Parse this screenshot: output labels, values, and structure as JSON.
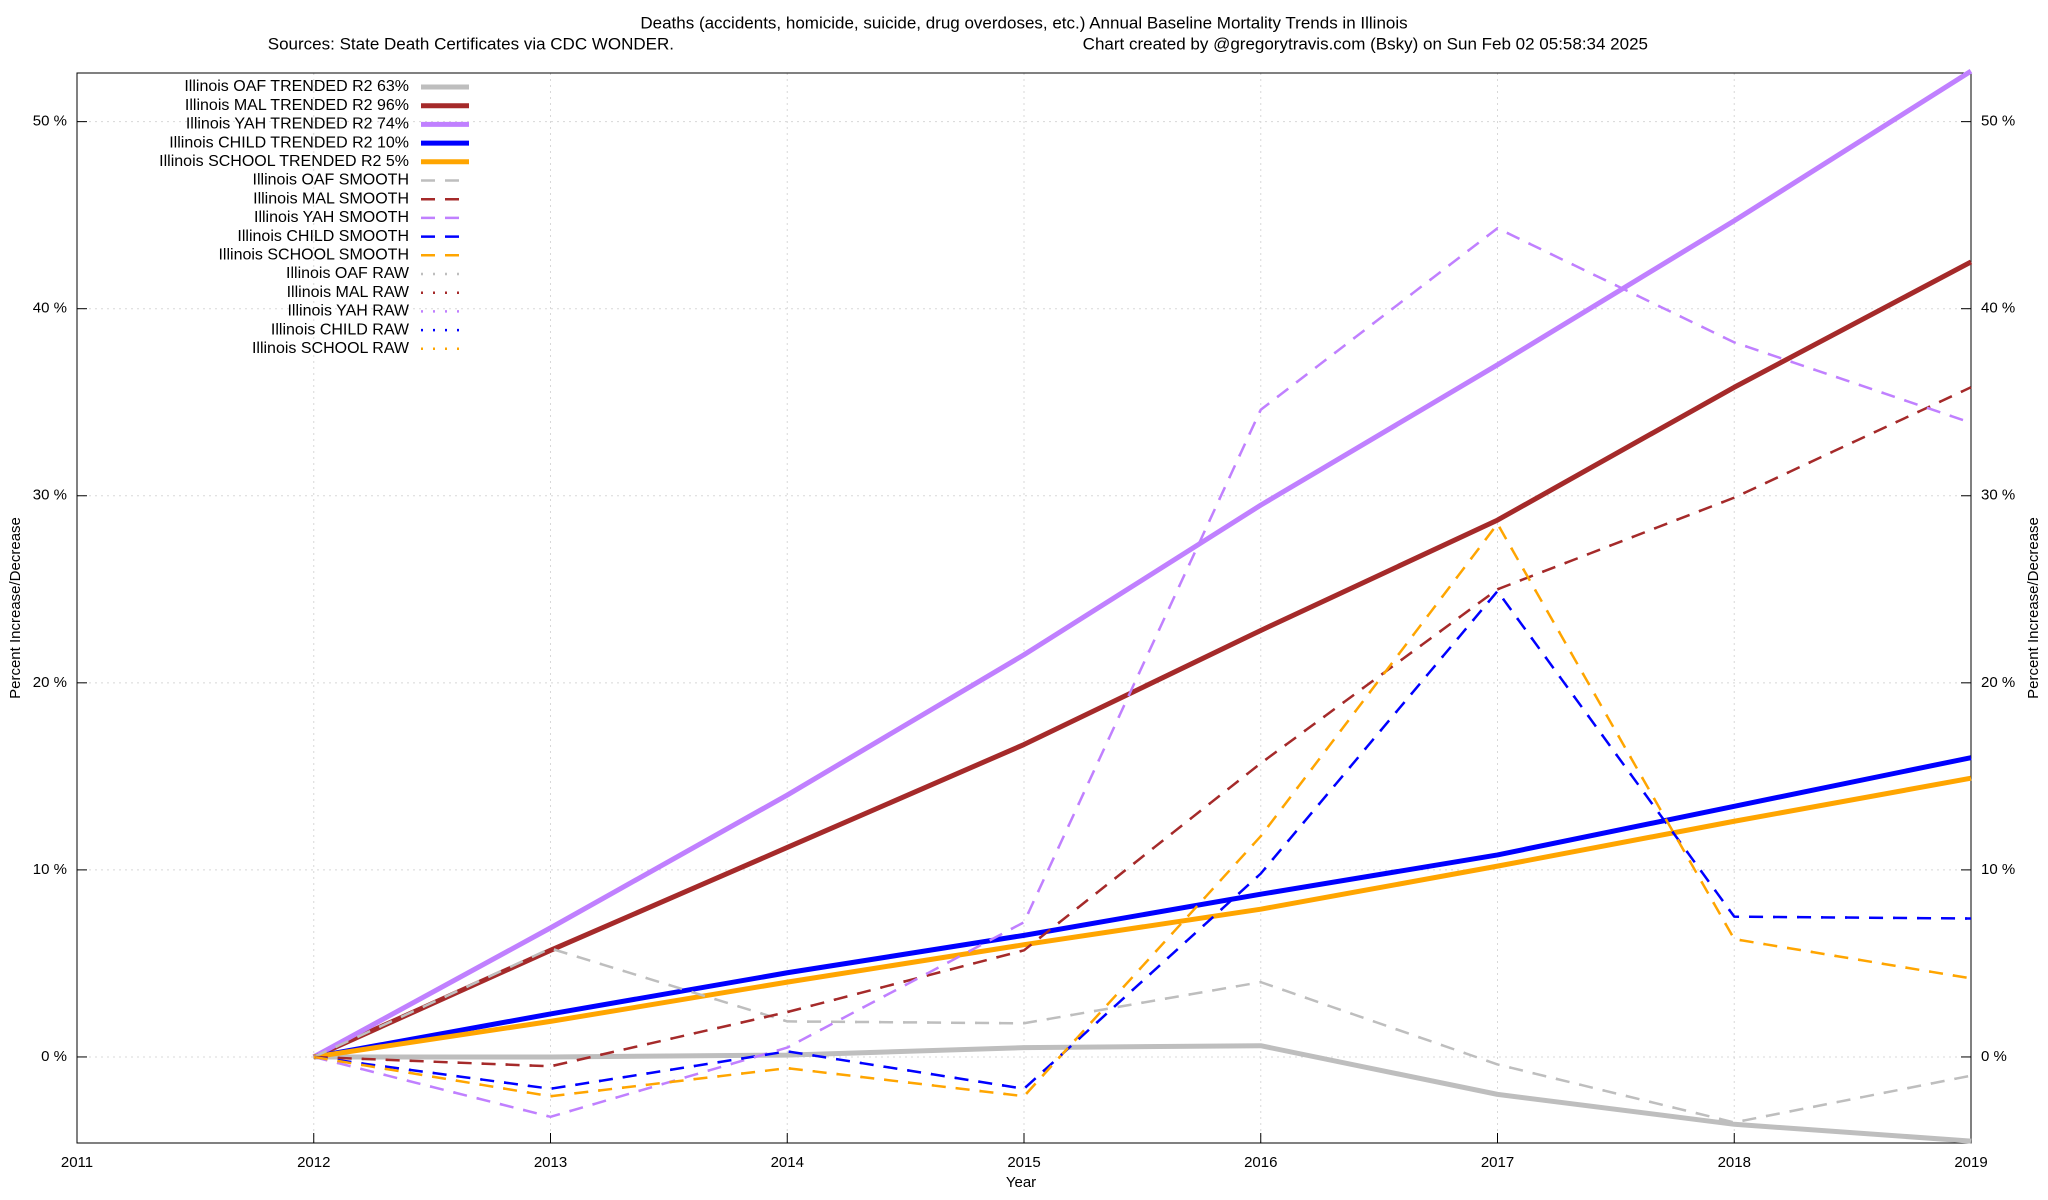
{
  "chart_data": {
    "type": "line",
    "title": "Deaths (accidents, homicide, suicide, drug overdoses, etc.)  Annual Baseline Mortality Trends in Illinois",
    "subtitle": "Sources: State Death Certificates via CDC WONDER.",
    "credit": "Chart created by @gregorytravis.com (Bsky) on Sun Feb 02 05:58:34 2025",
    "x_label": "Year",
    "y_label": "Percent Increase/Decrease",
    "y2_label": "Percent Increase/Decrease",
    "x": [
      2012,
      2013,
      2014,
      2015,
      2016,
      2017,
      2018,
      2019
    ],
    "xlim": [
      2011,
      2019
    ],
    "xticks": [
      2011,
      2012,
      2013,
      2014,
      2015,
      2016,
      2017,
      2018,
      2019
    ],
    "ylim": [
      -4.6,
      52.6
    ],
    "yticks": [
      {
        "value": 0,
        "label": "0 %"
      },
      {
        "value": 10,
        "label": "10 %"
      },
      {
        "value": 20,
        "label": "20 %"
      },
      {
        "value": 30,
        "label": "30 %"
      },
      {
        "value": 40,
        "label": "40 %"
      },
      {
        "value": 50,
        "label": "50 %"
      }
    ],
    "grid": true,
    "legend": "top-left",
    "series": [
      {
        "name": "Illinois OAF TRENDED R2  63%",
        "color": "#bebebe",
        "style": "solid",
        "values": [
          0,
          0,
          0.1,
          0.5,
          0.6,
          -2.0,
          -3.6,
          -4.5
        ]
      },
      {
        "name": "Illinois MAL TRENDED R2  96%",
        "color": "#a52a2a",
        "style": "solid",
        "values": [
          0,
          5.7,
          11.2,
          16.7,
          22.8,
          28.7,
          35.8,
          42.5
        ]
      },
      {
        "name": "Illinois YAH TRENDED R2  74%",
        "color": "#c080ff",
        "style": "solid",
        "values": [
          0,
          6.9,
          14.0,
          21.5,
          29.5,
          37.0,
          44.7,
          52.7
        ]
      },
      {
        "name": "Illinois CHILD TRENDED R2  10%",
        "color": "#0000ff",
        "style": "solid",
        "values": [
          0,
          2.3,
          4.5,
          6.5,
          8.7,
          10.8,
          13.4,
          16.0
        ]
      },
      {
        "name": "Illinois SCHOOL TRENDED R2   5%",
        "color": "#ffa500",
        "style": "solid",
        "values": [
          0,
          1.9,
          4.0,
          6.0,
          7.9,
          10.2,
          12.6,
          14.9
        ]
      },
      {
        "name": "Illinois OAF SMOOTH",
        "color": "#bebebe",
        "style": "dashed",
        "values": [
          0,
          5.8,
          1.9,
          1.8,
          4.0,
          -0.4,
          -3.5,
          -1.0
        ]
      },
      {
        "name": "Illinois MAL SMOOTH",
        "color": "#a52a2a",
        "style": "dashed",
        "values": [
          0,
          -0.5,
          2.4,
          5.7,
          15.7,
          25.0,
          29.9,
          35.8
        ]
      },
      {
        "name": "Illinois YAH SMOOTH",
        "color": "#c080ff",
        "style": "dashed",
        "values": [
          0,
          -3.2,
          0.5,
          7.2,
          34.6,
          44.3,
          38.2,
          33.9
        ]
      },
      {
        "name": "Illinois CHILD SMOOTH",
        "color": "#0000ff",
        "style": "dashed",
        "values": [
          0,
          -1.7,
          0.3,
          -1.7,
          9.8,
          24.9,
          7.5,
          7.4
        ]
      },
      {
        "name": "Illinois SCHOOL SMOOTH",
        "color": "#ffa500",
        "style": "dashed",
        "values": [
          0,
          -2.1,
          -0.6,
          -2.1,
          11.8,
          28.5,
          6.3,
          4.2
        ]
      },
      {
        "name": "Illinois OAF RAW",
        "color": "#bebebe",
        "style": "dotted",
        "values": [
          0,
          5.8,
          1.9,
          1.8,
          4.0,
          -0.4,
          -3.5,
          -1.0
        ]
      },
      {
        "name": "Illinois MAL RAW",
        "color": "#a52a2a",
        "style": "dotted",
        "values": [
          0,
          -0.5,
          2.4,
          5.7,
          15.7,
          25.0,
          29.9,
          35.8
        ]
      },
      {
        "name": "Illinois YAH RAW",
        "color": "#c080ff",
        "style": "dotted",
        "values": [
          0,
          -3.2,
          0.5,
          7.2,
          34.6,
          44.3,
          38.2,
          33.9
        ]
      },
      {
        "name": "Illinois CHILD RAW",
        "color": "#0000ff",
        "style": "dotted",
        "values": [
          0,
          -1.7,
          0.3,
          -1.7,
          9.8,
          24.9,
          7.5,
          7.4
        ]
      },
      {
        "name": "Illinois SCHOOL RAW",
        "color": "#ffa500",
        "style": "dotted",
        "values": [
          0,
          -2.1,
          -0.6,
          -2.1,
          11.8,
          28.5,
          6.3,
          4.2
        ]
      }
    ]
  }
}
